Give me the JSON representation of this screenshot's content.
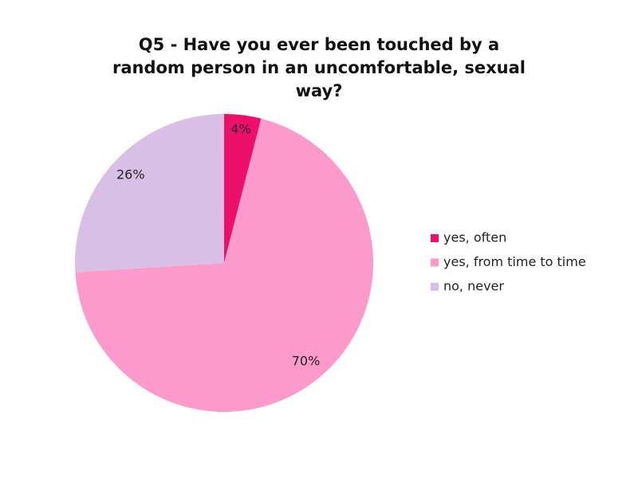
{
  "chart_data": {
    "type": "pie",
    "title": "Q5 - Have you ever been touched by a random person in an uncomfortable, sexual way?",
    "categories": [
      "yes, often",
      "yes, from time to time",
      "no, never"
    ],
    "values": [
      4,
      70,
      26
    ],
    "value_labels": [
      "4%",
      "70%",
      "26%"
    ],
    "colors": [
      "#ee0f6a",
      "#fc9bcb",
      "#d9bfe6"
    ],
    "legend": "right"
  }
}
